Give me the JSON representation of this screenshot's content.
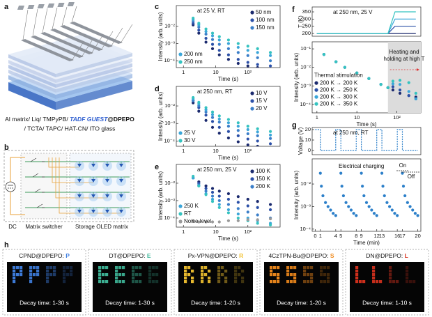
{
  "panels": {
    "a": {
      "label": "a",
      "caption_line1": [
        "Al matrix/ Liq/ TMPyPB/ ",
        "TADF GUEST",
        "@",
        "DPEPO"
      ],
      "caption_line2": "/ TCTA/ TAPC/ HAT-CN/ ITO glass"
    },
    "b": {
      "label": "b",
      "texts": [
        "DC",
        "Matrix switcher",
        "Storage OLED matrix"
      ]
    },
    "c": {
      "label": "c",
      "type": "scatter",
      "annotation": "at 25 V, RT",
      "x_label": "Time (s)",
      "y_label": "Intensity (arb. units)",
      "log_x": true,
      "log_y": true,
      "xlim": [
        0.6,
        1000
      ],
      "ylim": [
        4e-05,
        0.16
      ],
      "xticks": [
        1,
        10,
        {
          "value": 100,
          "label": "10²"
        }
      ],
      "yticks": [
        {
          "value": 0.01,
          "label": "10⁻²"
        },
        {
          "value": 0.001,
          "label": "10⁻³"
        },
        {
          "value": 0.0001,
          "label": "10⁻⁴"
        }
      ],
      "x": [
        2,
        3,
        5,
        8,
        13,
        25,
        50,
        100,
        200,
        500
      ],
      "series": [
        {
          "name": "50 nm",
          "color": "#1b2a6e",
          "legend": "upper right",
          "values": [
            0.012,
            0.004,
            0.0012,
            0.0005,
            0.00022,
            0.00012,
            7e-05,
            5e-05,
            4e-05,
            3e-05
          ]
        },
        {
          "name": "100 nm",
          "color": "#2b50a8",
          "legend": "upper right",
          "values": [
            0.015,
            0.006,
            0.002,
            0.0009,
            0.0004,
            0.00022,
            0.00012,
            8e-05,
            6e-05,
            5e-05
          ]
        },
        {
          "name": "150 nm",
          "color": "#3b7fc9",
          "legend": "upper right",
          "values": [
            0.02,
            0.009,
            0.0035,
            0.0017,
            0.0009,
            0.0005,
            0.0003,
            0.0002,
            0.00015,
            0.0001
          ]
        },
        {
          "name": "200 nm",
          "color": "#3ba6d9",
          "legend": "lower left",
          "values": [
            0.025,
            0.012,
            0.005,
            0.0028,
            0.0016,
            0.001,
            0.0006,
            0.0004,
            0.0003,
            0.0002
          ]
        },
        {
          "name": "250 nm",
          "color": "#35c3c0",
          "legend": "lower left",
          "values": [
            0.03,
            0.015,
            0.007,
            0.004,
            0.0025,
            0.0016,
            0.001,
            0.0007,
            0.0005,
            0.0003
          ]
        }
      ]
    },
    "d": {
      "label": "d",
      "type": "scatter",
      "annotation": "at 250 nm, RT",
      "x_label": "Time (s)",
      "y_label": "Intensity (arb. units)",
      "log_x": true,
      "log_y": true,
      "xlim": [
        0.6,
        1000
      ],
      "ylim": [
        5e-05,
        0.13
      ],
      "xticks": [
        1,
        10,
        {
          "value": 100,
          "label": "10²"
        }
      ],
      "yticks": [
        {
          "value": 0.01,
          "label": "10⁻²"
        },
        {
          "value": 0.001,
          "label": "10⁻³"
        },
        {
          "value": 0.0001,
          "label": "10⁻⁴"
        }
      ],
      "x": [
        2,
        3,
        5,
        8,
        13,
        25,
        50,
        100,
        200,
        500
      ],
      "series": [
        {
          "name": "10 V",
          "color": "#1b2a6e",
          "legend": "upper right",
          "values": [
            0.015,
            0.005,
            0.0015,
            0.0006,
            0.00028,
            0.00015,
            9e-05,
            6e-05,
            5e-05,
            4e-05
          ]
        },
        {
          "name": "15 V",
          "color": "#2b50a8",
          "legend": "upper right",
          "values": [
            0.02,
            0.008,
            0.003,
            0.0013,
            0.0006,
            0.00035,
            0.0002,
            0.00013,
            0.0001,
            7e-05
          ]
        },
        {
          "name": "20 V",
          "color": "#3b7fc9",
          "legend": "upper right",
          "values": [
            0.02,
            0.01,
            0.0045,
            0.0022,
            0.0012,
            0.0007,
            0.0004,
            0.00026,
            0.0002,
            0.00014
          ]
        },
        {
          "name": "25 V",
          "color": "#3ba6d9",
          "legend": "lower left",
          "values": [
            0.025,
            0.013,
            0.006,
            0.0032,
            0.0018,
            0.0011,
            0.0007,
            0.00045,
            0.00033,
            0.00022
          ]
        },
        {
          "name": "30 V",
          "color": "#35c3c0",
          "legend": "lower left",
          "values": [
            0.03,
            0.016,
            0.008,
            0.0045,
            0.0027,
            0.0017,
            0.0011,
            0.0007,
            0.0005,
            0.00035
          ]
        }
      ]
    },
    "e": {
      "label": "e",
      "type": "scatter",
      "annotation": "at 250 nm, 25 V",
      "x_label": "Time (s)",
      "y_label": "Intensity (arb. units)",
      "log_x": true,
      "log_y": true,
      "xlim": [
        0.6,
        1000
      ],
      "ylim": [
        3e-05,
        0.12
      ],
      "xticks": [
        1,
        10,
        {
          "value": 100,
          "label": "10²"
        }
      ],
      "yticks": [
        {
          "value": 0.01,
          "label": "10⁻²"
        },
        {
          "value": 0.001,
          "label": "10⁻³"
        },
        {
          "value": 0.0001,
          "label": "10⁻⁴"
        }
      ],
      "x": [
        2,
        3,
        5,
        8,
        13,
        25,
        50,
        100,
        200,
        500
      ],
      "series": [
        {
          "name": "100 K",
          "color": "#1b2a6e",
          "legend": "upper right",
          "values": [
            0.02,
            0.012,
            0.007,
            0.005,
            0.0035,
            0.0025,
            0.0017,
            0.0012,
            0.0009,
            0.0006
          ]
        },
        {
          "name": "150 K",
          "color": "#2b50a8",
          "legend": "upper right",
          "values": [
            0.02,
            0.01,
            0.005,
            0.003,
            0.0018,
            0.0012,
            0.0008,
            0.0005,
            0.0004,
            0.0003
          ]
        },
        {
          "name": "200 K",
          "color": "#3b7fc9",
          "legend": "upper right",
          "values": [
            0.02,
            0.008,
            0.0035,
            0.0018,
            0.001,
            0.0006,
            0.00035,
            0.00022,
            0.00015,
            0.0001
          ]
        },
        {
          "name": "250 K",
          "color": "#3ba6d9",
          "legend": "lower left",
          "values": [
            0.02,
            0.007,
            0.0025,
            0.0012,
            0.0006,
            0.0003,
            0.00017,
            0.0001,
            7e-05,
            5e-05
          ]
        },
        {
          "name": "RT",
          "color": "#35c3c0",
          "legend": "lower left",
          "values": [
            0.025,
            0.007,
            0.0022,
            0.0009,
            0.0004,
            0.0002,
            0.0001,
            7e-05,
            5e-05,
            4e-05
          ]
        },
        {
          "name": "Noise level",
          "color": "#9a9a9a",
          "legend": "lower left",
          "values": [
            7e-05,
            6e-05,
            6e-05,
            6e-05,
            6e-05,
            7e-05,
            7e-05,
            8e-05,
            8e-05,
            9e-05
          ]
        }
      ]
    },
    "f": {
      "label": "f",
      "temperature": {
        "type": "line",
        "annotation": "at 250 nm, 25 V",
        "y_label": "T (K)",
        "log_x": true,
        "log_y": false,
        "xlim": [
          0.76,
          400
        ],
        "ylim": [
          181,
          384
        ],
        "yticks": [
          200,
          250,
          300,
          350
        ],
        "x": [
          1,
          60,
          90,
          300
        ],
        "series": [
          {
            "name": "200 K → 200 K",
            "color": "#1b2a6e",
            "values": [
              200,
              200,
              200,
              200
            ]
          },
          {
            "name": "200 K → 250 K",
            "color": "#2b50a8",
            "values": [
              200,
              200,
              250,
              250
            ]
          },
          {
            "name": "200 K → 300 K",
            "color": "#3ba6d9",
            "values": [
              200,
              200,
              300,
              300
            ]
          },
          {
            "name": "200 K → 350 K",
            "color": "#35c3c0",
            "values": [
              200,
              200,
              350,
              350
            ]
          }
        ]
      },
      "intensity": {
        "type": "scatter",
        "x_label": "Time (s)",
        "y_label": "Intensity (arb. units)",
        "log_x": true,
        "log_y": true,
        "xlim": [
          0.76,
          400
        ],
        "ylim": [
          3.5e-05,
          0.24
        ],
        "shade_from": 60,
        "annotation_lines": [
          "Heating and",
          "holding at high T"
        ],
        "legend_title": "Thermal stimulation",
        "xticks": [
          1,
          10,
          {
            "value": 100,
            "label": "10²"
          }
        ],
        "yticks": [
          {
            "value": 0.1,
            "label": "10⁻¹"
          },
          {
            "value": 0.01,
            "label": "10⁻²"
          },
          {
            "value": 0.001,
            "label": "10⁻³"
          },
          {
            "value": 0.0001,
            "label": "10⁻⁴"
          }
        ],
        "x": [
          1.5,
          3,
          5,
          10,
          20,
          40,
          60,
          80,
          120,
          200,
          300
        ],
        "series": [
          {
            "name": "200 K → 200 K",
            "color": "#1b2a6e",
            "legend": "center left",
            "values": [
              0.05,
              0.02,
              0.01,
              0.005,
              0.0025,
              0.0012,
              0.0008,
              0.0006,
              0.0004,
              0.0003,
              0.00025
            ]
          },
          {
            "name": "200 K → 250 K",
            "color": "#2b50a8",
            "legend": "center left",
            "values": [
              0.05,
              0.02,
              0.01,
              0.005,
              0.0025,
              0.0012,
              0.0008,
              0.0009,
              0.0006,
              0.0003,
              0.0002
            ]
          },
          {
            "name": "200 K → 300 K",
            "color": "#3ba6d9",
            "legend": "center left",
            "values": [
              0.05,
              0.02,
              0.01,
              0.005,
              0.0025,
              0.0012,
              0.0008,
              0.0013,
              0.0012,
              0.0005,
              0.0002
            ]
          },
          {
            "name": "200 K → 350 K",
            "color": "#35c3c0",
            "legend": "center left",
            "values": [
              0.05,
              0.02,
              0.01,
              0.005,
              0.0025,
              0.0012,
              0.0008,
              0.0018,
              0.002,
              0.0015,
              0.0004
            ]
          }
        ]
      }
    },
    "g": {
      "label": "g",
      "voltage": {
        "type": "line",
        "annotation": "at 250 nm, RT",
        "y_label": "Voltage (V)",
        "log_x": false,
        "log_y": false,
        "xlim": [
          -0.6,
          20.6
        ],
        "ylim": [
          -4,
          22
        ],
        "yticks": [
          0,
          10,
          20
        ],
        "x": [
          0,
          1,
          1,
          4,
          4,
          5,
          5,
          8,
          8,
          9,
          9,
          12,
          12,
          13,
          13,
          16,
          16,
          17,
          17,
          20
        ],
        "series": [
          {
            "name": "Voltage",
            "color": "#2b7fc9",
            "values": [
              20,
              20,
              0,
              0,
              20,
              20,
              0,
              0,
              20,
              20,
              0,
              0,
              20,
              20,
              0,
              0,
              20,
              20,
              0,
              0
            ]
          }
        ]
      },
      "intensity": {
        "type": "scatter",
        "x_label": "Time (min)",
        "y_label": "Intensity (arb. units)",
        "log_x": false,
        "log_y": true,
        "annotations": [
          "Electrical charging",
          "On",
          "Off"
        ],
        "xlim": [
          -0.6,
          20.6
        ],
        "ylim": [
          8e-05,
          0.13
        ],
        "xticks": [
          0,
          1,
          4,
          5,
          8,
          9,
          12,
          13,
          16,
          17,
          20
        ],
        "yticks": [
          {
            "value": 0.01,
            "label": "10⁻²"
          },
          {
            "value": 0.001,
            "label": "10⁻³"
          },
          {
            "value": 0.0001,
            "label": "10⁻⁴"
          }
        ],
        "x": [
          1,
          1.2,
          1.5,
          2,
          2.5,
          3,
          3.5,
          4,
          5,
          5.2,
          5.5,
          6,
          6.5,
          7,
          7.5,
          8,
          9,
          9.2,
          9.5,
          10,
          10.5,
          11,
          11.5,
          12,
          13,
          13.2,
          13.5,
          14,
          14.5,
          15,
          15.5,
          16,
          17,
          17.2,
          17.5,
          18,
          18.5,
          19,
          19.5,
          20
        ],
        "series": [
          {
            "name": "Intensity",
            "color": "#2b7fc9",
            "values": [
              0.03,
              0.008,
              0.003,
              0.0015,
              0.001,
              0.0007,
              0.0005,
              0.0004,
              0.03,
              0.008,
              0.003,
              0.0015,
              0.001,
              0.0007,
              0.0005,
              0.0004,
              0.03,
              0.008,
              0.003,
              0.0015,
              0.001,
              0.0007,
              0.0005,
              0.0004,
              0.03,
              0.008,
              0.003,
              0.0015,
              0.001,
              0.0007,
              0.0005,
              0.0004,
              0.03,
              0.008,
              0.003,
              0.0015,
              0.001,
              0.0007,
              0.0005,
              0.0004
            ]
          }
        ]
      }
    },
    "h": {
      "label": "h",
      "samples": [
        {
          "name": "CPND@DPEPO: ",
          "letter": "P",
          "color": "#3f7fe0",
          "decay": "Decay time: 1-30 s"
        },
        {
          "name": "DT@DPEPO: ",
          "letter": "E",
          "color": "#3fb89a",
          "decay": "Decay time: 1-30 s"
        },
        {
          "name": "Px-VPN@DPEPO: ",
          "letter": "R",
          "color": "#f2c230",
          "decay": "Decay time: 1-20 s"
        },
        {
          "name": "4CzTPN-Bu@DPEPO: ",
          "letter": "S",
          "color": "#f08a1c",
          "decay": "Decay time: 1-20 s"
        },
        {
          "name": "DN@DPEPO: ",
          "letter": "L",
          "color": "#d8321e",
          "decay": "Decay time: 1-10 s"
        }
      ]
    }
  }
}
